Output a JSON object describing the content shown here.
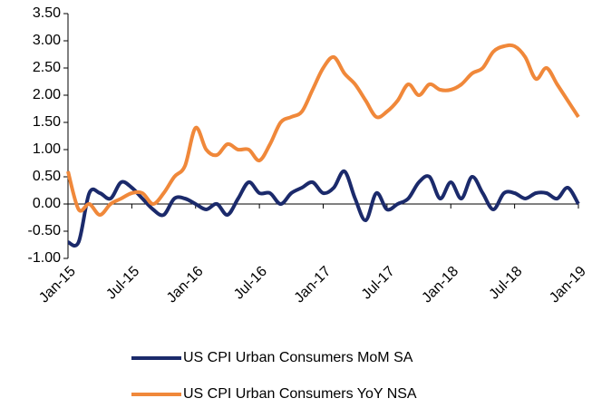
{
  "chart_data": {
    "type": "line",
    "categories": [
      "Jan-15",
      null,
      null,
      null,
      null,
      null,
      "Jul-15",
      null,
      null,
      null,
      null,
      null,
      "Jan-16",
      null,
      null,
      null,
      null,
      null,
      "Jul-16",
      null,
      null,
      null,
      null,
      null,
      "Jan-17",
      null,
      null,
      null,
      null,
      null,
      "Jul-17",
      null,
      null,
      null,
      null,
      null,
      "Jan-18",
      null,
      null,
      null,
      null,
      null,
      "Jul-18",
      null,
      null,
      null,
      null,
      null,
      "Jan-19"
    ],
    "series": [
      {
        "name": "US CPI Urban Consumers MoM SA",
        "color": "#1b2a6b",
        "values": [
          -0.7,
          -0.7,
          0.2,
          0.2,
          0.1,
          0.4,
          0.3,
          0.1,
          -0.1,
          -0.2,
          0.1,
          0.1,
          0.0,
          -0.1,
          0.0,
          -0.2,
          0.1,
          0.4,
          0.2,
          0.2,
          0.0,
          0.2,
          0.3,
          0.4,
          0.2,
          0.3,
          0.6,
          0.1,
          -0.3,
          0.2,
          -0.1,
          0.0,
          0.1,
          0.4,
          0.5,
          0.1,
          0.4,
          0.1,
          0.5,
          0.2,
          -0.1,
          0.2,
          0.2,
          0.1,
          0.2,
          0.2,
          0.1,
          0.3,
          0.0
        ]
      },
      {
        "name": "US CPI Urban Consumers YoY NSA",
        "color": "#f0883a",
        "values": [
          0.6,
          -0.1,
          0.0,
          -0.2,
          0.0,
          0.1,
          0.2,
          0.2,
          0.0,
          0.2,
          0.5,
          0.7,
          1.4,
          1.0,
          0.9,
          1.1,
          1.0,
          1.0,
          0.8,
          1.1,
          1.5,
          1.6,
          1.7,
          2.1,
          2.5,
          2.7,
          2.4,
          2.2,
          1.9,
          1.6,
          1.7,
          1.9,
          2.2,
          2.0,
          2.2,
          2.1,
          2.1,
          2.2,
          2.4,
          2.5,
          2.8,
          2.9,
          2.9,
          2.7,
          2.3,
          2.5,
          2.2,
          1.9,
          1.6
        ]
      }
    ],
    "ylim": [
      -1,
      3.5
    ],
    "yticks": [
      {
        "value": -1,
        "label": "-1.00"
      },
      {
        "value": -0.5,
        "label": "-0.50"
      },
      {
        "value": 0,
        "label": "0.00"
      },
      {
        "value": 0.5,
        "label": "0.50"
      },
      {
        "value": 1,
        "label": "1.00"
      },
      {
        "value": 1.5,
        "label": "1.50"
      },
      {
        "value": 2,
        "label": "2.00"
      },
      {
        "value": 2.5,
        "label": "2.50"
      },
      {
        "value": 3,
        "label": "3.00"
      },
      {
        "value": 3.5,
        "label": "3.50"
      }
    ],
    "legend": "bottom"
  }
}
